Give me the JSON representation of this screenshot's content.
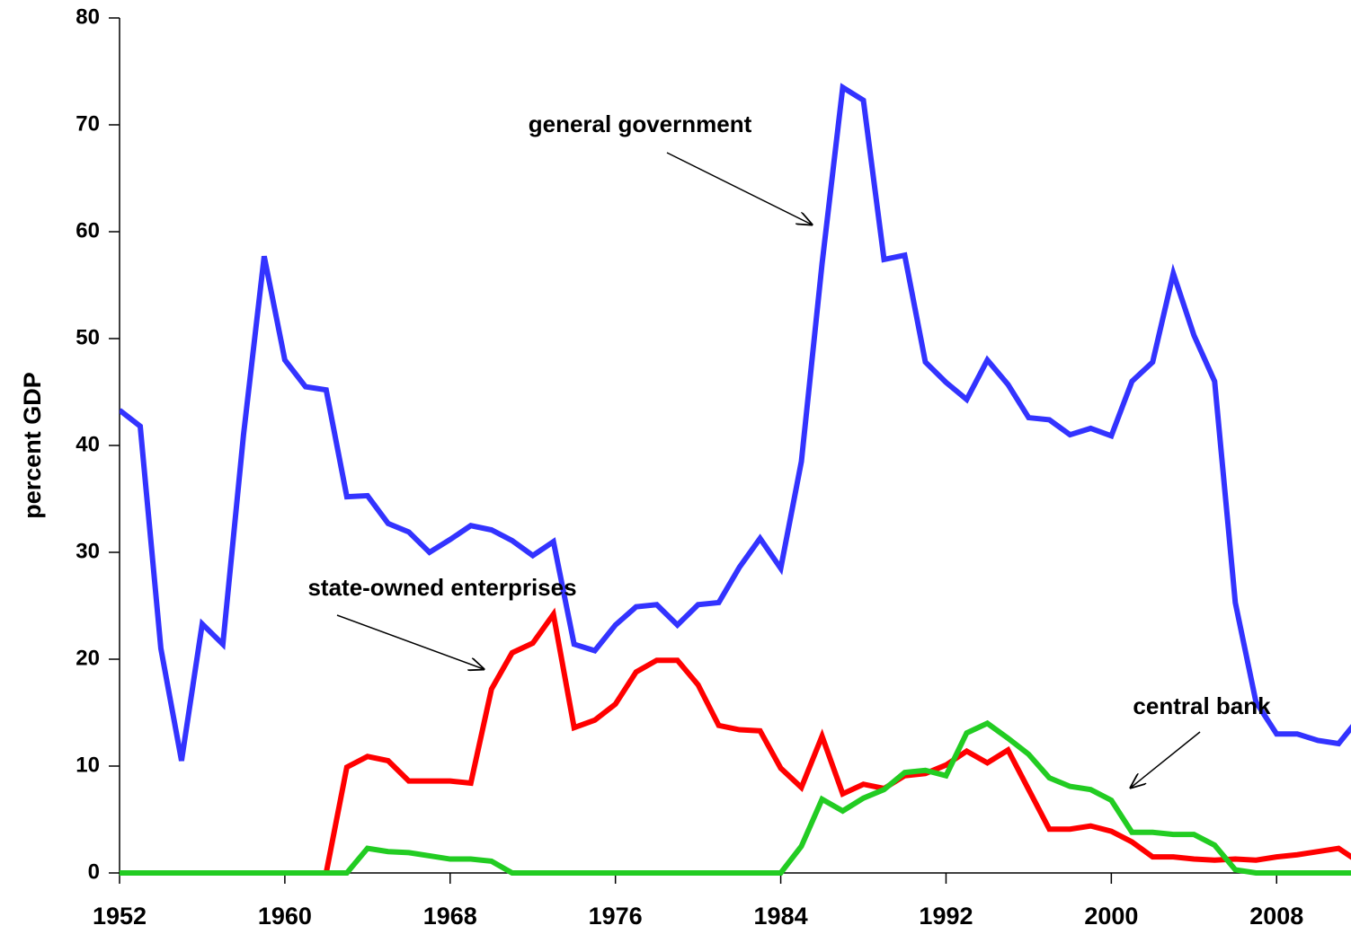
{
  "chart_data": {
    "type": "line",
    "ylabel": "percent GDP",
    "x": [
      1952,
      1953,
      1954,
      1955,
      1956,
      1957,
      1958,
      1959,
      1960,
      1961,
      1962,
      1963,
      1964,
      1965,
      1966,
      1967,
      1968,
      1969,
      1970,
      1971,
      1972,
      1973,
      1974,
      1975,
      1976,
      1977,
      1978,
      1979,
      1980,
      1981,
      1982,
      1983,
      1984,
      1985,
      1986,
      1987,
      1988,
      1989,
      1990,
      1991,
      1992,
      1993,
      1994,
      1995,
      1996,
      1997,
      1998,
      1999,
      2000,
      2001,
      2002,
      2003,
      2004,
      2005,
      2006,
      2007,
      2008,
      2009,
      2010,
      2011,
      2012
    ],
    "series": [
      {
        "name": "general government",
        "color": "#3333ff",
        "values": [
          43.3,
          41.8,
          21,
          10.5,
          23.3,
          21.4,
          41,
          57.7,
          48,
          45.5,
          45.2,
          35.2,
          35.3,
          32.7,
          31.9,
          30,
          31.2,
          32.5,
          32.1,
          31.1,
          29.7,
          31,
          21.4,
          20.8,
          23.2,
          24.9,
          25.1,
          23.2,
          25.1,
          25.3,
          28.6,
          31.3,
          28.5,
          38.5,
          57,
          73.5,
          72.3,
          57.4,
          57.8,
          47.8,
          45.9,
          44.3,
          48,
          45.7,
          42.6,
          42.4,
          41,
          41.6,
          40.9,
          46,
          47.8,
          56.1,
          50.3,
          46,
          25.3,
          16,
          13,
          13,
          12.4,
          12.1,
          14.5
        ]
      },
      {
        "name": "state-owned enterprises",
        "color": "#ff0000",
        "values": [
          0,
          0,
          0,
          0,
          0,
          0,
          0,
          0,
          0,
          0,
          0,
          9.9,
          10.9,
          10.5,
          8.6,
          8.6,
          8.6,
          8.4,
          17.2,
          20.6,
          21.5,
          24.2,
          13.6,
          14.3,
          15.8,
          18.8,
          19.9,
          19.9,
          17.6,
          13.8,
          13.4,
          13.3,
          9.8,
          8,
          12.8,
          7.4,
          8.3,
          7.9,
          9.1,
          9.3,
          10.1,
          11.4,
          10.3,
          11.5,
          7.8,
          4.1,
          4.1,
          4.4,
          3.9,
          2.9,
          1.5,
          1.5,
          1.3,
          1.2,
          1.3,
          1.2,
          1.5,
          1.7,
          2,
          2.3,
          1
        ]
      },
      {
        "name": "central bank",
        "color": "#22cc22",
        "values": [
          0,
          0,
          0,
          0,
          0,
          0,
          0,
          0,
          0,
          0,
          0,
          0,
          2.3,
          2,
          1.9,
          1.6,
          1.3,
          1.3,
          1.1,
          0,
          0,
          0,
          0,
          0,
          0,
          0,
          0,
          0,
          0,
          0,
          0,
          0,
          0,
          2.5,
          6.9,
          5.8,
          7,
          7.8,
          9.4,
          9.6,
          9.1,
          13.1,
          14,
          12.6,
          11.1,
          8.9,
          8.1,
          7.8,
          6.8,
          3.8,
          3.8,
          3.6,
          3.6,
          2.6,
          0.3,
          0,
          0,
          0,
          0,
          0,
          0
        ]
      }
    ],
    "xlim": [
      1952,
      2011.6
    ],
    "xticks": [
      1952,
      1960,
      1968,
      1976,
      1984,
      1992,
      2000,
      2008
    ],
    "ylim": [
      0,
      80
    ],
    "yticks": [
      0,
      10,
      20,
      30,
      40,
      50,
      60,
      70,
      80
    ]
  }
}
